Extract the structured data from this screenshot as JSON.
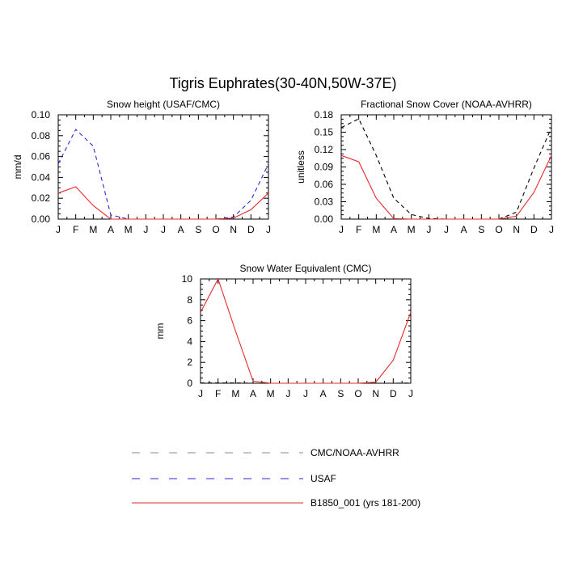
{
  "figure_title": "Tigris Euphrates(30-40N,50W-37E)",
  "colors": {
    "b1850": "#e8282b",
    "usaf": "#2a2ad4",
    "obs": "#000000",
    "legend_obs": "#8a8a8a"
  },
  "legend": [
    {
      "label": "CMC/NOAA-AVHRR",
      "style": "dashed",
      "color": "#8a8a8a"
    },
    {
      "label": "USAF",
      "style": "dashed",
      "color": "#2a2ad4"
    },
    {
      "label": "B1850_001 (yrs 181-200)",
      "style": "solid",
      "color": "#e8282b"
    }
  ],
  "chart_data": [
    {
      "type": "line",
      "title": "Snow height (USAF/CMC)",
      "xlabel": "",
      "ylabel": "mm/d",
      "categories": [
        "J",
        "F",
        "M",
        "A",
        "M",
        "J",
        "J",
        "A",
        "S",
        "O",
        "N",
        "D",
        "J"
      ],
      "ylim": [
        0,
        0.1
      ],
      "yticks": [
        "0.00",
        "0.02",
        "0.04",
        "0.06",
        "0.08",
        "0.10"
      ],
      "series": [
        {
          "name": "USAF",
          "style": "dashed",
          "color": "#2a2ad4",
          "values": [
            0.053,
            0.086,
            0.07,
            0.004,
            0.0,
            0.0,
            0.0,
            0.0,
            0.0,
            0.0,
            0.002,
            0.018,
            0.053
          ]
        },
        {
          "name": "B1850_001 (yrs 181-200)",
          "style": "solid",
          "color": "#e8282b",
          "values": [
            0.025,
            0.031,
            0.013,
            0.0,
            0.0,
            0.0,
            0.0,
            0.0,
            0.0,
            0.0,
            0.001,
            0.009,
            0.025
          ]
        }
      ]
    },
    {
      "type": "line",
      "title": "Fractional Snow Cover (NOAA-AVHRR)",
      "xlabel": "",
      "ylabel": "unitless",
      "categories": [
        "J",
        "F",
        "M",
        "A",
        "M",
        "J",
        "J",
        "A",
        "S",
        "O",
        "N",
        "D",
        "J"
      ],
      "ylim": [
        0,
        0.18
      ],
      "yticks": [
        "0.00",
        "0.03",
        "0.06",
        "0.09",
        "0.12",
        "0.15",
        "0.18"
      ],
      "series": [
        {
          "name": "CMC/NOAA-AVHRR",
          "style": "dashed",
          "color": "#000000",
          "values": [
            0.158,
            0.173,
            0.11,
            0.036,
            0.008,
            0.001,
            0.0,
            0.0,
            0.0,
            0.0,
            0.012,
            0.088,
            0.158
          ]
        },
        {
          "name": "B1850_001 (yrs 181-200)",
          "style": "solid",
          "color": "#e8282b",
          "values": [
            0.11,
            0.099,
            0.036,
            0.001,
            0.0,
            0.0,
            0.0,
            0.0,
            0.0,
            0.0,
            0.005,
            0.046,
            0.11
          ]
        }
      ]
    },
    {
      "type": "line",
      "title": "Snow Water Equivalent (CMC)",
      "xlabel": "",
      "ylabel": "mm",
      "categories": [
        "J",
        "F",
        "M",
        "A",
        "M",
        "J",
        "J",
        "A",
        "S",
        "O",
        "N",
        "D",
        "J"
      ],
      "ylim": [
        0,
        10
      ],
      "yticks": [
        "0",
        "2",
        "4",
        "6",
        "8",
        "10"
      ],
      "series": [
        {
          "name": "CMC/NOAA-AVHRR",
          "style": "dashed",
          "color": "#000000",
          "values": [
            0.02,
            0.02,
            0.02,
            0.0,
            0.0,
            0.0,
            0.0,
            0.0,
            0.0,
            0.0,
            0.0,
            0.0,
            0.02
          ]
        },
        {
          "name": "B1850_001 (yrs 181-200)",
          "style": "solid",
          "color": "#e8282b",
          "values": [
            6.8,
            10.0,
            5.0,
            0.2,
            0.0,
            0.0,
            0.0,
            0.0,
            0.0,
            0.0,
            0.1,
            2.2,
            6.8
          ]
        }
      ]
    }
  ]
}
